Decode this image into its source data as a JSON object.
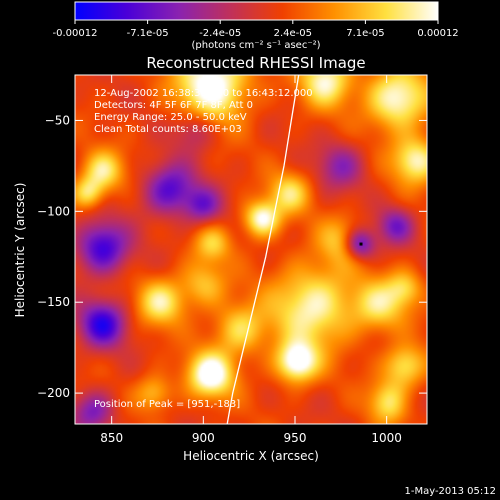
{
  "chart_data": {
    "type": "heatmap",
    "title": "Reconstructed RHESSI Image",
    "colorbar": {
      "ticks": [
        "-0.00012",
        "-7.1e-05",
        "-2.4e-05",
        "2.4e-05",
        "7.1e-05",
        "0.00012"
      ],
      "unit_label": "(photons cm⁻² s⁻¹ asec⁻²)",
      "range": [
        -0.00012,
        0.00012
      ],
      "colors": [
        "#0000ff",
        "#4a00d8",
        "#8a22b0",
        "#c0305a",
        "#f04000",
        "#ff9000",
        "#ffe040",
        "#ffffff"
      ]
    },
    "xlabel": "Heliocentric X (arcsec)",
    "ylabel": "Heliocentric Y (arcsec)",
    "xlim": [
      830,
      1022
    ],
    "ylim": [
      -217,
      -25
    ],
    "x_ticks": [
      850,
      900,
      950,
      1000
    ],
    "y_ticks": [
      -50,
      -100,
      -150,
      -200
    ],
    "x_tick_labels": [
      "850",
      "900",
      "950",
      "1000"
    ],
    "y_tick_labels": [
      "−50",
      "−100",
      "−150",
      "−200"
    ],
    "info_lines": [
      "12-Aug-2002 16:38:36.000 to 16:43:12.000",
      "Detectors: 4F 5F 6F 7F 8F, Att 0",
      "Energy Range: 25.0 - 50.0 keV",
      "Clean     Total counts: 8.60E+03"
    ],
    "peak_label": "Position of Peak = [951,-183]",
    "peak": [
      951,
      -183
    ],
    "limb_points": [
      [
        952,
        -25
      ],
      [
        948,
        -50
      ],
      [
        944,
        -75
      ],
      [
        939,
        -100
      ],
      [
        934,
        -125
      ],
      [
        928,
        -150
      ],
      [
        922,
        -175
      ],
      [
        916,
        -200
      ],
      [
        913,
        -217
      ]
    ],
    "sources": [
      {
        "x": 905,
        "y": -30,
        "amp": 1.0,
        "s": 14
      },
      {
        "x": 967,
        "y": -28,
        "amp": 0.8,
        "s": 10
      },
      {
        "x": 1006,
        "y": -38,
        "amp": 0.9,
        "s": 12
      },
      {
        "x": 1016,
        "y": -72,
        "amp": 0.8,
        "s": 9
      },
      {
        "x": 845,
        "y": -78,
        "amp": 0.7,
        "s": 8
      },
      {
        "x": 837,
        "y": -90,
        "amp": 0.6,
        "s": 6
      },
      {
        "x": 947,
        "y": -90,
        "amp": 0.6,
        "s": 8
      },
      {
        "x": 932,
        "y": -104,
        "amp": 0.9,
        "s": 7
      },
      {
        "x": 976,
        "y": -116,
        "amp": 0.5,
        "s": 9
      },
      {
        "x": 905,
        "y": -118,
        "amp": 0.5,
        "s": 7
      },
      {
        "x": 877,
        "y": -150,
        "amp": 0.7,
        "s": 9
      },
      {
        "x": 900,
        "y": -140,
        "amp": 0.5,
        "s": 9
      },
      {
        "x": 960,
        "y": -152,
        "amp": 0.8,
        "s": 16
      },
      {
        "x": 996,
        "y": -152,
        "amp": 0.6,
        "s": 10
      },
      {
        "x": 1010,
        "y": -142,
        "amp": 0.5,
        "s": 7
      },
      {
        "x": 920,
        "y": -165,
        "amp": 0.6,
        "s": 10
      },
      {
        "x": 951,
        "y": -183,
        "amp": 1.0,
        "s": 8
      },
      {
        "x": 904,
        "y": -190,
        "amp": 1.0,
        "s": 9
      },
      {
        "x": 1010,
        "y": -185,
        "amp": 0.7,
        "s": 8
      },
      {
        "x": 1002,
        "y": -205,
        "amp": 0.7,
        "s": 8
      },
      {
        "x": 873,
        "y": -200,
        "amp": 0.5,
        "s": 7
      },
      {
        "x": 845,
        "y": -120,
        "amp": -0.9,
        "s": 10
      },
      {
        "x": 882,
        "y": -88,
        "amp": -0.8,
        "s": 10
      },
      {
        "x": 845,
        "y": -162,
        "amp": -0.9,
        "s": 9
      },
      {
        "x": 900,
        "y": -97,
        "amp": -0.6,
        "s": 7
      },
      {
        "x": 985,
        "y": -118,
        "amp": -0.9,
        "s": 6
      },
      {
        "x": 1005,
        "y": -108,
        "amp": -0.6,
        "s": 7
      },
      {
        "x": 975,
        "y": -75,
        "amp": -0.5,
        "s": 9
      },
      {
        "x": 840,
        "y": -210,
        "amp": -0.6,
        "s": 8
      },
      {
        "x": 895,
        "y": -55,
        "amp": -0.4,
        "s": 8
      },
      {
        "x": 1010,
        "y": -205,
        "amp": -0.2,
        "s": 6
      }
    ]
  },
  "footer": {
    "date": "1-May-2013 05:12"
  }
}
